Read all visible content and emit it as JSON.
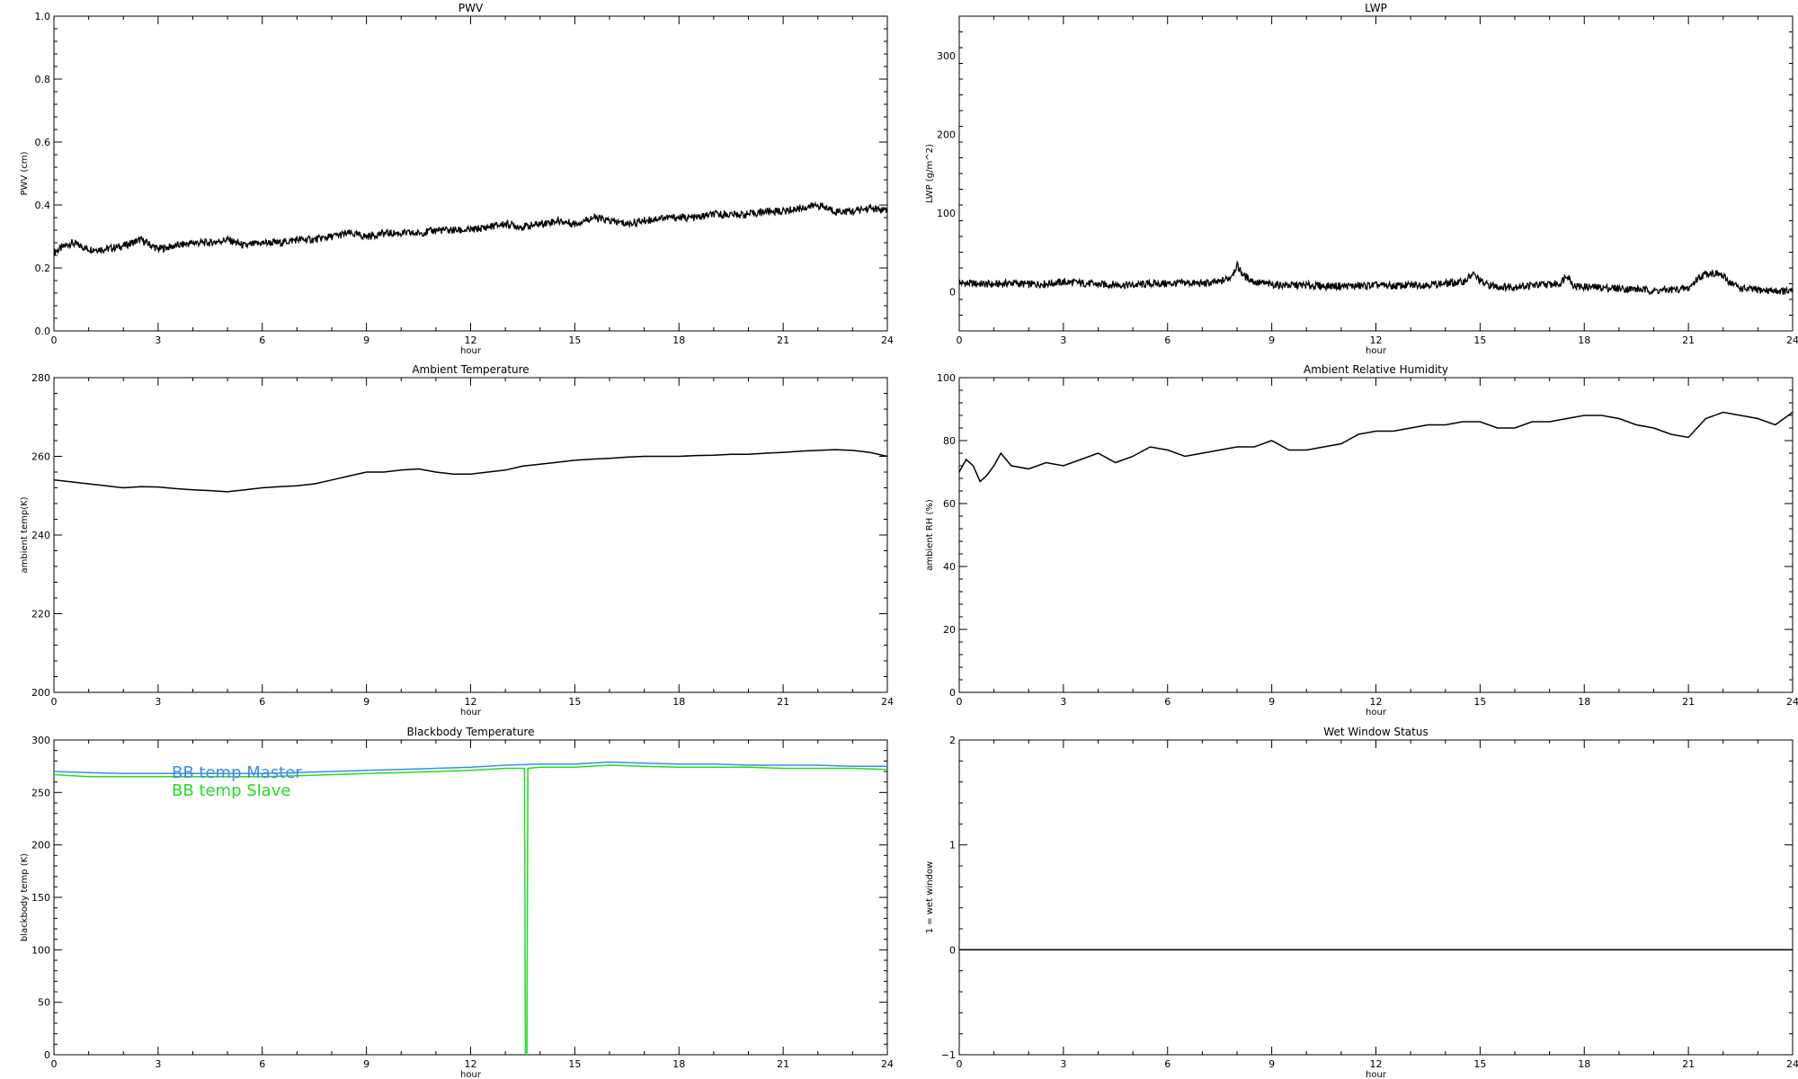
{
  "chart_data": [
    {
      "type": "line",
      "title": "PWV",
      "xlabel": "hour",
      "ylabel": "PWV (cm)",
      "xlim": [
        0,
        24
      ],
      "ylim": [
        0,
        1.0
      ],
      "xticks": [
        "0",
        "3",
        "6",
        "9",
        "12",
        "15",
        "18",
        "21",
        "24"
      ],
      "yticks": [
        "0.0",
        "0.2",
        "0.4",
        "0.6",
        "0.8",
        "1.0"
      ],
      "grid": false,
      "series": [
        {
          "color": "#000000",
          "style": "noisy-band",
          "x": [
            0,
            0.5,
            1,
            1.5,
            2,
            2.5,
            3,
            3.5,
            4,
            4.5,
            5,
            5.5,
            6,
            6.5,
            7,
            7.5,
            8,
            8.5,
            9,
            9.5,
            10,
            10.5,
            11,
            11.5,
            12,
            12.5,
            13,
            13.5,
            14,
            14.5,
            15,
            15.5,
            16,
            16.5,
            17,
            17.5,
            18,
            18.5,
            19,
            19.5,
            20,
            20.5,
            21,
            21.5,
            22,
            22.5,
            23,
            23.5,
            24
          ],
          "values": [
            0.25,
            0.28,
            0.26,
            0.26,
            0.27,
            0.29,
            0.26,
            0.27,
            0.28,
            0.28,
            0.29,
            0.27,
            0.28,
            0.28,
            0.29,
            0.29,
            0.3,
            0.31,
            0.3,
            0.31,
            0.31,
            0.31,
            0.32,
            0.32,
            0.32,
            0.33,
            0.34,
            0.33,
            0.34,
            0.35,
            0.34,
            0.36,
            0.35,
            0.34,
            0.35,
            0.36,
            0.36,
            0.36,
            0.37,
            0.37,
            0.37,
            0.38,
            0.38,
            0.39,
            0.4,
            0.38,
            0.38,
            0.39,
            0.38
          ]
        }
      ]
    },
    {
      "type": "line",
      "title": "LWP",
      "xlabel": "hour",
      "ylabel": "LWP (g/m^2)",
      "xlim": [
        0,
        24
      ],
      "ylim": [
        -50,
        350
      ],
      "xticks": [
        "0",
        "3",
        "6",
        "9",
        "12",
        "15",
        "18",
        "21",
        "24"
      ],
      "yticks": [
        "0",
        "100",
        "200",
        "300"
      ],
      "grid": false,
      "series": [
        {
          "color": "#000000",
          "style": "noisy-band",
          "x": [
            0,
            0.5,
            1,
            1.5,
            2,
            2.5,
            3,
            3.5,
            4,
            4.5,
            5,
            5.5,
            6,
            6.5,
            7,
            7.5,
            7.8,
            8.0,
            8.2,
            8.5,
            9,
            9.5,
            10,
            10.5,
            11,
            11.5,
            12,
            12.5,
            13,
            13.5,
            14,
            14.5,
            14.8,
            15.1,
            15.5,
            16,
            16.5,
            17,
            17.3,
            17.5,
            17.7,
            18,
            18.5,
            19,
            19.5,
            20,
            20.5,
            21,
            21.3,
            21.6,
            21.9,
            22.2,
            22.5,
            23,
            23.5,
            24
          ],
          "values": [
            11,
            10,
            9,
            11,
            9,
            10,
            12,
            11,
            9,
            9,
            8,
            10,
            10,
            11,
            10,
            12,
            18,
            33,
            20,
            12,
            9,
            8,
            8,
            7,
            7,
            7,
            8,
            7,
            8,
            9,
            10,
            12,
            22,
            10,
            6,
            6,
            8,
            9,
            10,
            22,
            7,
            6,
            5,
            4,
            3,
            1,
            2,
            4,
            18,
            24,
            22,
            12,
            4,
            2,
            1,
            0
          ]
        }
      ]
    },
    {
      "type": "line",
      "title": "Ambient Temperature",
      "xlabel": "hour",
      "ylabel": "ambient temp(K)",
      "xlim": [
        0,
        24
      ],
      "ylim": [
        200,
        280
      ],
      "xticks": [
        "0",
        "3",
        "6",
        "9",
        "12",
        "15",
        "18",
        "21",
        "24"
      ],
      "yticks": [
        "200",
        "220",
        "240",
        "260",
        "280"
      ],
      "grid": false,
      "series": [
        {
          "color": "#000000",
          "style": "line",
          "x": [
            0,
            0.5,
            1,
            1.5,
            2,
            2.5,
            3,
            3.5,
            4,
            4.5,
            5,
            5.5,
            6,
            6.5,
            7,
            7.5,
            8,
            8.5,
            9,
            9.5,
            10,
            10.5,
            11,
            11.5,
            12,
            12.5,
            13,
            13.5,
            14,
            14.5,
            15,
            15.5,
            16,
            16.5,
            17,
            17.5,
            18,
            18.5,
            19,
            19.5,
            20,
            20.5,
            21,
            21.5,
            22,
            22.5,
            23,
            23.5,
            24
          ],
          "values": [
            254,
            253.5,
            253,
            252.5,
            252,
            252.3,
            252.2,
            251.8,
            251.5,
            251.3,
            251,
            251.5,
            252,
            252.3,
            252.5,
            253,
            254,
            255,
            256,
            256,
            256.5,
            256.8,
            256,
            255.5,
            255.5,
            256,
            256.5,
            257.5,
            258,
            258.5,
            259,
            259.3,
            259.5,
            259.8,
            260,
            260,
            260,
            260.2,
            260.3,
            260.5,
            260.5,
            260.8,
            261,
            261.3,
            261.5,
            261.7,
            261.5,
            261,
            260
          ]
        }
      ]
    },
    {
      "type": "line",
      "title": "Ambient Relative Humidity",
      "xlabel": "hour",
      "ylabel": "ambient RH (%)",
      "xlim": [
        0,
        24
      ],
      "ylim": [
        0,
        100
      ],
      "xticks": [
        "0",
        "3",
        "6",
        "9",
        "12",
        "15",
        "18",
        "21",
        "24"
      ],
      "yticks": [
        "0",
        "20",
        "40",
        "60",
        "80",
        "100"
      ],
      "grid": false,
      "series": [
        {
          "color": "#000000",
          "style": "line",
          "x": [
            0,
            0.2,
            0.4,
            0.6,
            0.8,
            1.0,
            1.2,
            1.5,
            2.0,
            2.5,
            3.0,
            3.5,
            4.0,
            4.5,
            5.0,
            5.5,
            6.0,
            6.5,
            7.0,
            7.5,
            8.0,
            8.5,
            9.0,
            9.5,
            10.0,
            10.5,
            11.0,
            11.5,
            12.0,
            12.5,
            13.0,
            13.5,
            14.0,
            14.5,
            15.0,
            15.5,
            16.0,
            16.5,
            17.0,
            17.5,
            18.0,
            18.5,
            19.0,
            19.5,
            20.0,
            20.5,
            21.0,
            21.5,
            22.0,
            22.5,
            23.0,
            23.5,
            24.0
          ],
          "values": [
            70,
            74,
            72,
            67,
            69,
            72,
            76,
            72,
            71,
            73,
            72,
            74,
            76,
            73,
            75,
            78,
            77,
            75,
            76,
            77,
            78,
            78,
            80,
            77,
            77,
            78,
            79,
            82,
            83,
            83,
            84,
            85,
            85,
            86,
            86,
            84,
            84,
            86,
            86,
            87,
            88,
            88,
            87,
            85,
            84,
            82,
            81,
            87,
            89,
            88,
            87,
            85,
            89
          ]
        }
      ]
    },
    {
      "type": "line",
      "title": "Blackbody Temperature",
      "xlabel": "hour",
      "ylabel": "blackbody temp (K)",
      "xlim": [
        0,
        24
      ],
      "ylim": [
        0,
        300
      ],
      "xticks": [
        "0",
        "3",
        "6",
        "9",
        "12",
        "15",
        "18",
        "21",
        "24"
      ],
      "yticks": [
        "0",
        "50",
        "100",
        "150",
        "200",
        "250",
        "300"
      ],
      "grid": false,
      "legend": "inside-top-left",
      "series": [
        {
          "name": "BB temp Master",
          "color": "#3a8ee6",
          "style": "line",
          "x": [
            0,
            1,
            2,
            3,
            4,
            5,
            6,
            7,
            8,
            9,
            10,
            11,
            12,
            13,
            14,
            15,
            16,
            17,
            18,
            19,
            20,
            21,
            22,
            23,
            24
          ],
          "values": [
            270,
            269,
            268,
            268,
            268,
            268,
            268,
            269,
            270,
            271,
            272,
            273,
            274,
            276,
            277,
            277,
            279,
            278,
            277,
            277,
            276,
            276,
            276,
            275,
            275
          ]
        },
        {
          "name": "BB temp Slave",
          "color": "#22dd22",
          "style": "line",
          "x": [
            0,
            1,
            2,
            3,
            4,
            5,
            6,
            7,
            8,
            9,
            10,
            11,
            12,
            13,
            13.55,
            13.58,
            13.62,
            13.65,
            14,
            15,
            16,
            17,
            18,
            19,
            20,
            21,
            22,
            23,
            24
          ],
          "values": [
            267,
            265,
            265,
            265,
            265,
            265,
            265,
            266,
            267,
            268,
            269,
            270,
            271,
            273,
            273,
            0,
            0,
            273,
            274,
            274,
            276,
            275,
            274,
            274,
            274,
            273,
            273,
            273,
            272
          ]
        }
      ]
    },
    {
      "type": "line",
      "title": "Wet Window Status",
      "xlabel": "hour",
      "ylabel": "1 = wet window",
      "xlim": [
        0,
        24
      ],
      "ylim": [
        -1,
        2
      ],
      "xticks": [
        "0",
        "3",
        "6",
        "9",
        "12",
        "15",
        "18",
        "21",
        "24"
      ],
      "yticks": [
        "−1",
        "0",
        "1",
        "2"
      ],
      "grid": false,
      "series": [
        {
          "color": "#000000",
          "style": "line",
          "x": [
            0,
            24
          ],
          "values": [
            0,
            0
          ]
        }
      ]
    }
  ]
}
